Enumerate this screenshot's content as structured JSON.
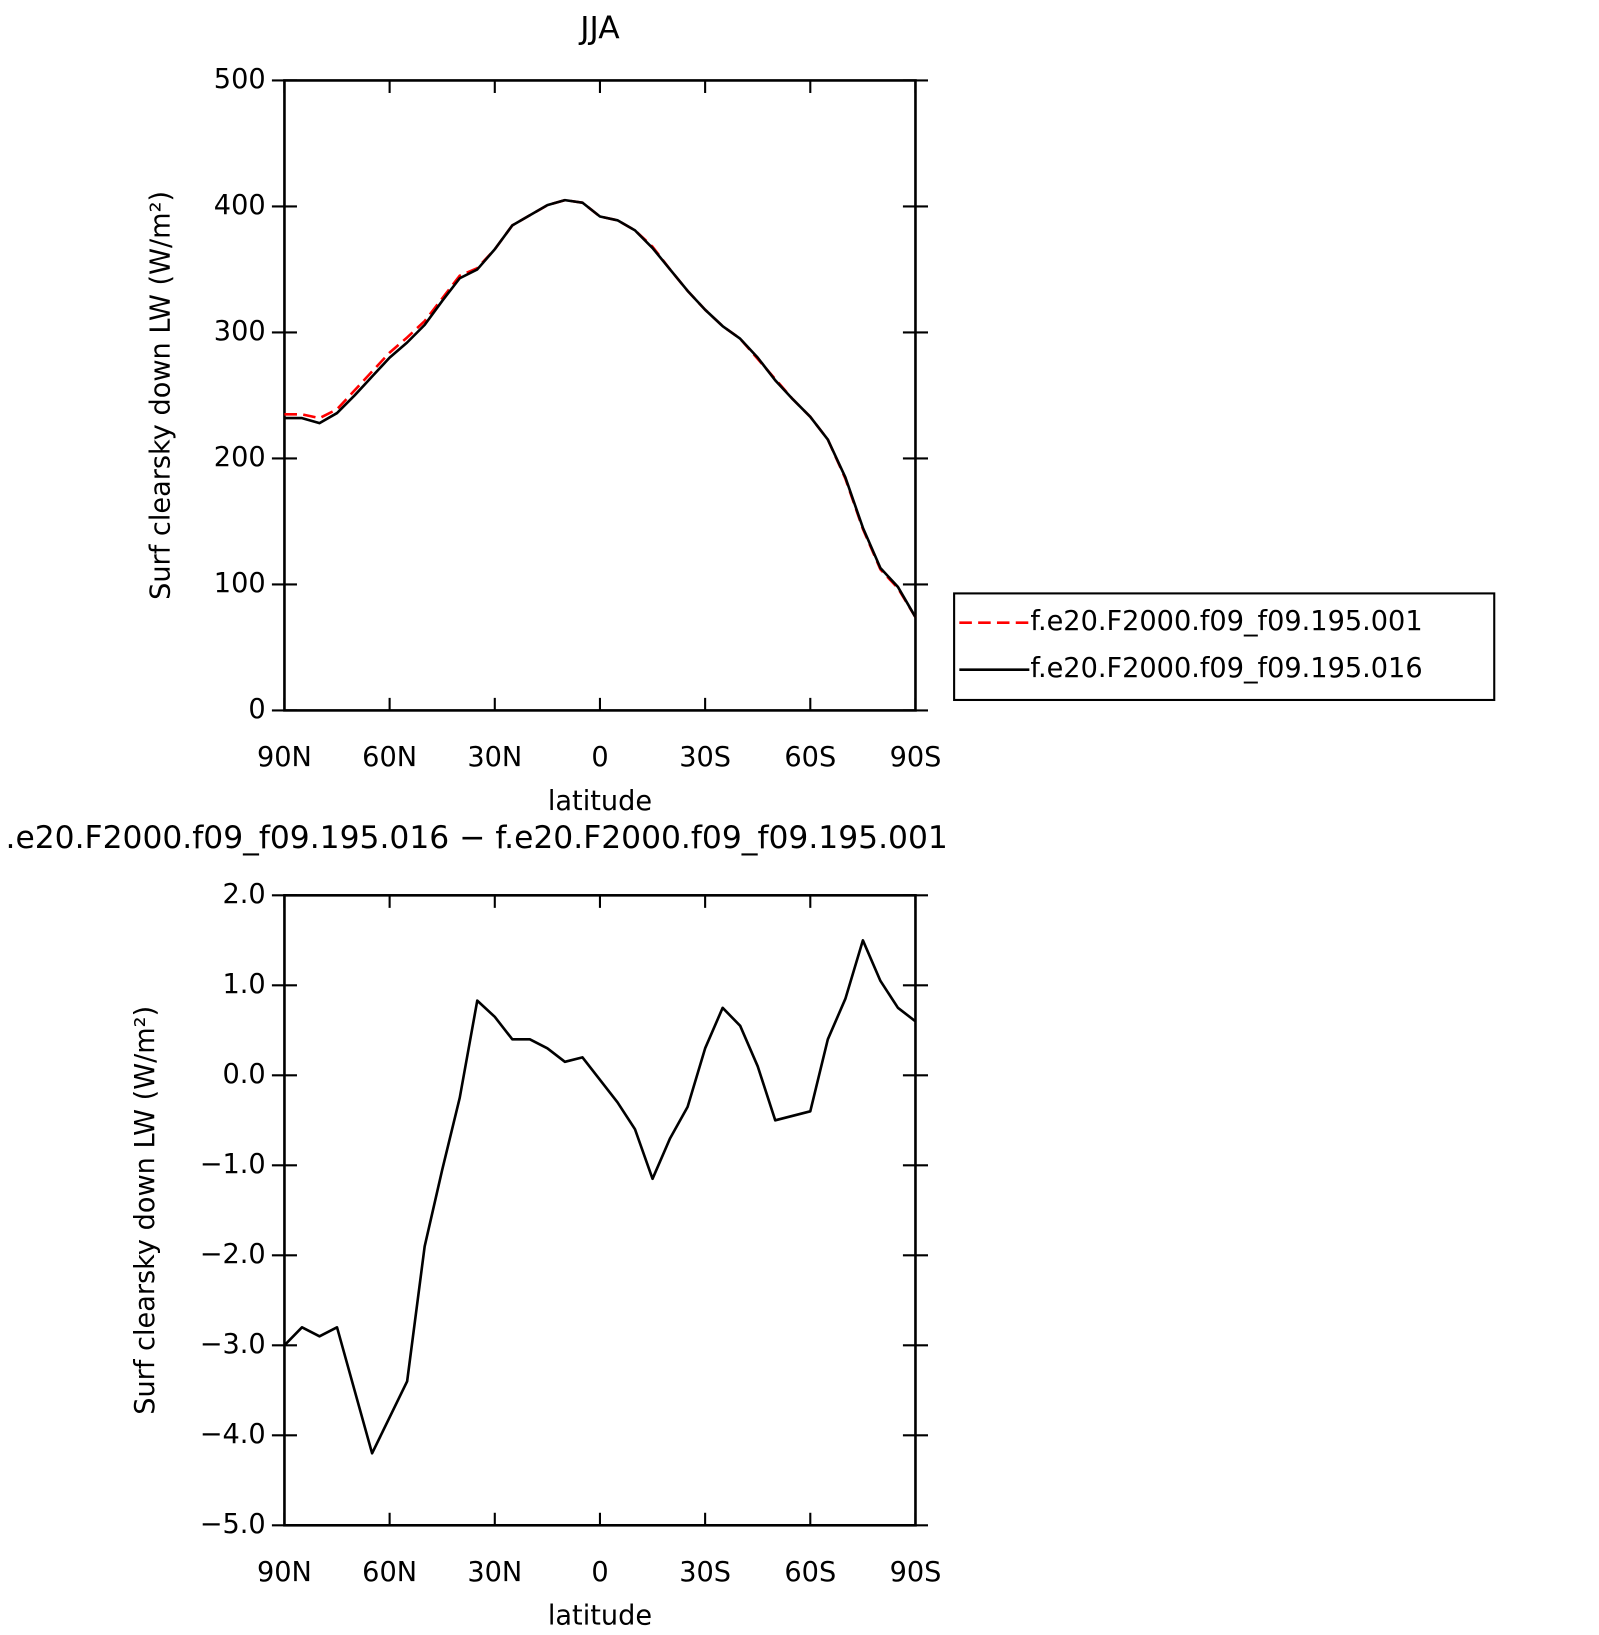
{
  "chart_data": [
    {
      "type": "line",
      "title": "JJA",
      "xlabel": "latitude",
      "ylabel": "Surf clearsky down LW (W/m²)",
      "x": [
        90,
        85,
        80,
        75,
        70,
        65,
        60,
        55,
        50,
        45,
        40,
        35,
        30,
        25,
        20,
        15,
        10,
        5,
        0,
        -5,
        -10,
        -15,
        -20,
        -25,
        -30,
        -35,
        -40,
        -45,
        -50,
        -55,
        -60,
        -65,
        -70,
        -75,
        -80,
        -85,
        -90
      ],
      "xlim": [
        90,
        -90
      ],
      "xticks": [
        {
          "value": 90,
          "label": "90N"
        },
        {
          "value": 60,
          "label": "60N"
        },
        {
          "value": 30,
          "label": "30N"
        },
        0,
        {
          "value": -30,
          "label": "30S"
        },
        {
          "value": -60,
          "label": "60S"
        },
        {
          "value": -90,
          "label": "90S"
        }
      ],
      "ylim": [
        0,
        500
      ],
      "yticks": [
        0,
        100,
        200,
        300,
        400,
        500
      ],
      "series": [
        {
          "name": "f.e20.F2000.f09_f09.195.001",
          "color": "#ff0000",
          "dash": true,
          "values": [
            235,
            235,
            232,
            239,
            254,
            269,
            284,
            296,
            309,
            327,
            345,
            351,
            366,
            385,
            393,
            401,
            405,
            403,
            392,
            389,
            381,
            368,
            350,
            333,
            318,
            305,
            295,
            279,
            263,
            247,
            233,
            215,
            184,
            144,
            112,
            97,
            74
          ]
        },
        {
          "name": "f.e20.F2000.f09_f09.195.016",
          "color": "#000000",
          "dash": false,
          "values": [
            232,
            232,
            228,
            236,
            250,
            265,
            280,
            292,
            306,
            325,
            343,
            350,
            366,
            385,
            393,
            401,
            405,
            403,
            392,
            389,
            381,
            367,
            350,
            333,
            318,
            305,
            295,
            280,
            262,
            247,
            233,
            215,
            185,
            145,
            113,
            98,
            74
          ]
        }
      ]
    },
    {
      "type": "line",
      "title": ".e20.F2000.f09_f09.195.016 − f.e20.F2000.f09_f09.195.001",
      "xlabel": "latitude",
      "ylabel": "Surf clearsky down LW (W/m²)",
      "x": [
        90,
        85,
        80,
        75,
        70,
        65,
        60,
        55,
        50,
        45,
        40,
        35,
        30,
        25,
        20,
        15,
        10,
        5,
        0,
        -5,
        -10,
        -15,
        -20,
        -25,
        -30,
        -35,
        -40,
        -45,
        -50,
        -55,
        -60,
        -65,
        -70,
        -75,
        -80,
        -85,
        -90
      ],
      "xlim": [
        90,
        -90
      ],
      "xticks": [
        {
          "value": 90,
          "label": "90N"
        },
        {
          "value": 60,
          "label": "60N"
        },
        {
          "value": 30,
          "label": "30N"
        },
        0,
        {
          "value": -30,
          "label": "30S"
        },
        {
          "value": -60,
          "label": "60S"
        },
        {
          "value": -90,
          "label": "90S"
        }
      ],
      "ylim": [
        -5,
        2
      ],
      "yticks": [
        {
          "value": -5,
          "label": "−5.0"
        },
        {
          "value": -4,
          "label": "−4.0"
        },
        {
          "value": -3,
          "label": "−3.0"
        },
        {
          "value": -2,
          "label": "−2.0"
        },
        {
          "value": -1,
          "label": "−1.0"
        },
        {
          "value": 0,
          "label": "0.0"
        },
        {
          "value": 1,
          "label": "1.0"
        },
        {
          "value": 2,
          "label": "2.0"
        }
      ],
      "color": "#000000",
      "values": [
        -3.0,
        -2.8,
        -2.9,
        -2.8,
        -3.5,
        -4.2,
        -3.8,
        -3.4,
        -1.9,
        -1.05,
        -0.25,
        0.83,
        0.65,
        0.4,
        0.4,
        0.3,
        0.15,
        0.2,
        -0.05,
        -0.3,
        -0.6,
        -1.15,
        -0.7,
        -0.35,
        0.3,
        0.75,
        0.55,
        0.1,
        -0.5,
        -0.45,
        -0.4,
        0.4,
        0.85,
        1.5,
        1.05,
        0.75,
        0.6
      ]
    }
  ]
}
